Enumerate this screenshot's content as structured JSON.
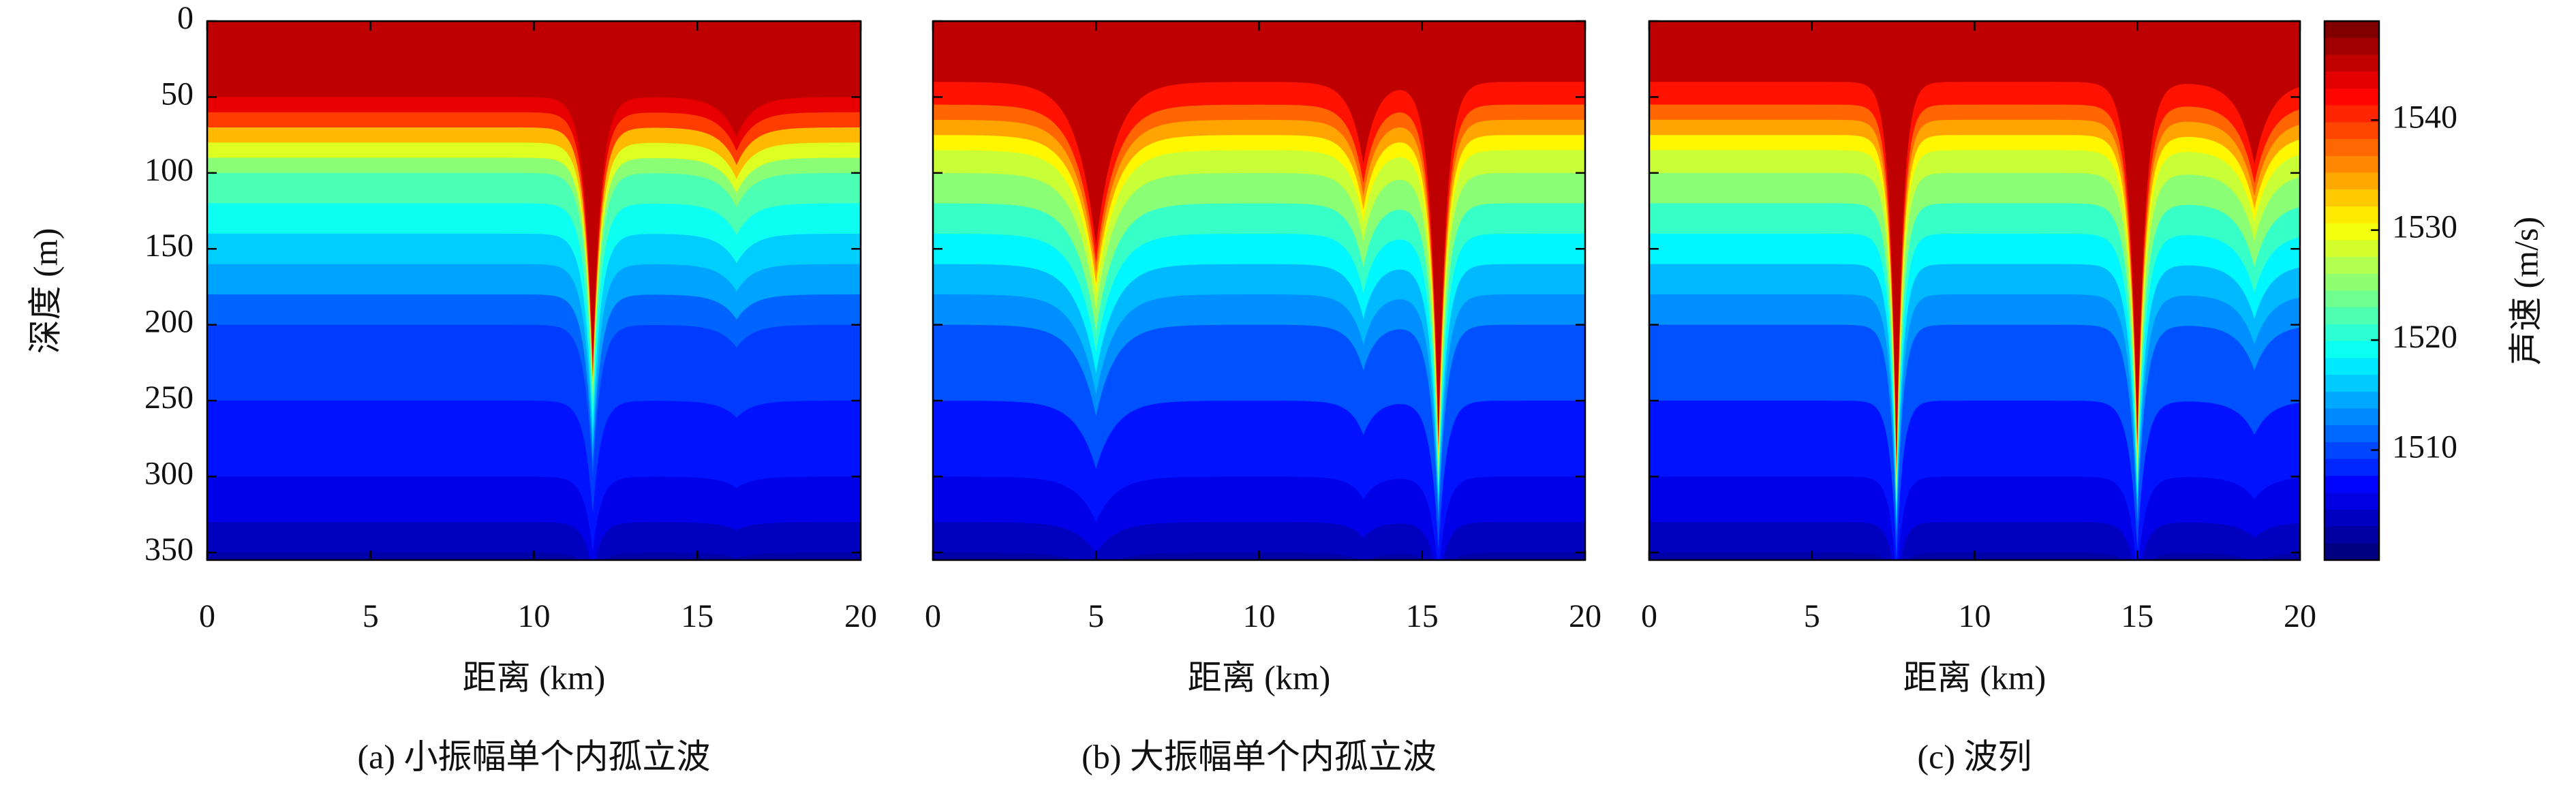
{
  "chart_data": [
    {
      "type": "heatmap",
      "caption": "(a) 小振幅单个内孤立波",
      "xlabel": "距离 (km)",
      "ylabel": "深度 (m)",
      "xlim": [
        0,
        20
      ],
      "xticks": [
        0,
        5,
        10,
        15,
        20
      ],
      "ylim": [
        0,
        355
      ],
      "yticks": [
        0,
        50,
        100,
        150,
        200,
        250,
        300,
        350
      ],
      "profile": {
        "depth": [
          0,
          50,
          60,
          70,
          80,
          90,
          100,
          120,
          140,
          160,
          180,
          200,
          250,
          300,
          330,
          350
        ],
        "speed": [
          1546,
          1544,
          1540,
          1534,
          1529,
          1525,
          1522,
          1519,
          1516,
          1514,
          1511,
          1509,
          1507,
          1505,
          1503,
          1502
        ]
      },
      "waves": [
        {
          "x": 11.8,
          "amplitude": 200,
          "width": 0.25
        },
        {
          "x": 16.2,
          "amplitude": 30,
          "width": 0.5
        }
      ]
    },
    {
      "type": "heatmap",
      "caption": "(b) 大振幅单个内孤立波",
      "xlabel": "距离 (km)",
      "xlim": [
        0,
        20
      ],
      "xticks": [
        0,
        5,
        10,
        15,
        20
      ],
      "ylim": [
        0,
        355
      ],
      "yticks": [
        0,
        50,
        100,
        150,
        200,
        250,
        300,
        350
      ],
      "profile": {
        "depth": [
          0,
          40,
          55,
          65,
          75,
          85,
          100,
          120,
          140,
          160,
          180,
          200,
          250,
          300,
          330,
          350
        ],
        "speed": [
          1546,
          1542,
          1538,
          1535,
          1531,
          1528,
          1525,
          1521,
          1518,
          1515,
          1513,
          1510,
          1507,
          1505,
          1503,
          1502
        ]
      },
      "waves": [
        {
          "x": 15.5,
          "amplitude": 260,
          "width": 0.25
        },
        {
          "x": 5,
          "amplitude": 120,
          "width": 0.6
        },
        {
          "x": 13.2,
          "amplitude": 60,
          "width": 0.4
        }
      ]
    },
    {
      "type": "heatmap",
      "caption": "(c) 波列",
      "xlabel": "距离 (km)",
      "xlim": [
        0,
        20
      ],
      "xticks": [
        0,
        5,
        10,
        15,
        20
      ],
      "ylim": [
        0,
        355
      ],
      "yticks": [
        0,
        50,
        100,
        150,
        200,
        250,
        300,
        350
      ],
      "profile": {
        "depth": [
          0,
          40,
          55,
          65,
          75,
          85,
          100,
          120,
          140,
          160,
          180,
          200,
          250,
          300,
          330,
          350
        ],
        "speed": [
          1546,
          1542,
          1538,
          1535,
          1531,
          1528,
          1525,
          1521,
          1518,
          1515,
          1513,
          1510,
          1507,
          1505,
          1503,
          1502
        ]
      },
      "waves": [
        {
          "x": 7.6,
          "amplitude": 280,
          "width": 0.2
        },
        {
          "x": 15,
          "amplitude": 260,
          "width": 0.25
        },
        {
          "x": 18.6,
          "amplitude": 60,
          "width": 0.5
        }
      ],
      "colormap": "jet",
      "zlabel": "声速 (m/s)",
      "zlim": [
        1500,
        1549
      ],
      "zticks": [
        1510,
        1520,
        1530,
        1540
      ]
    }
  ]
}
